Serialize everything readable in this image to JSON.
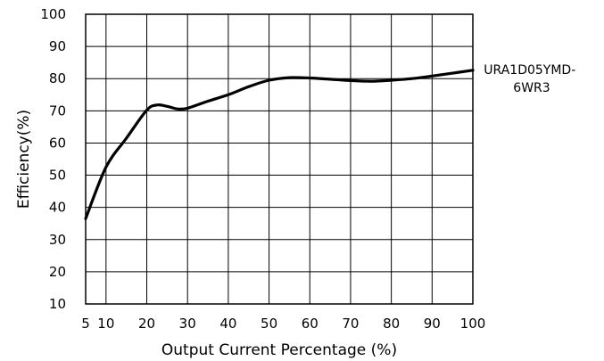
{
  "chart_data": {
    "type": "line",
    "xlabel": "Output Current Percentage (%)",
    "ylabel": "Efficiency(%)",
    "xlim": [
      5,
      100
    ],
    "ylim": [
      10,
      100
    ],
    "x_ticks": [
      5,
      10,
      20,
      30,
      40,
      50,
      60,
      70,
      80,
      90,
      100
    ],
    "y_ticks": [
      10,
      20,
      30,
      40,
      50,
      60,
      70,
      80,
      90,
      100
    ],
    "grid": true,
    "series": [
      {
        "name": "URA1D05YMD-6WR3",
        "name_lines": [
          "URA1D05YMD-",
          "6WR3"
        ],
        "x": [
          5,
          10,
          15,
          20,
          22.5,
          25,
          27.5,
          30,
          35,
          40,
          45,
          50,
          55,
          60,
          65,
          70,
          75,
          80,
          85,
          90,
          95,
          100
        ],
        "y": [
          36.5,
          52.5,
          61.5,
          70.2,
          71.8,
          71.4,
          70.6,
          70.8,
          73,
          75,
          77.5,
          79.5,
          80.3,
          80.2,
          79.8,
          79.4,
          79.2,
          79.5,
          80,
          80.8,
          81.7,
          82.6
        ]
      }
    ]
  }
}
